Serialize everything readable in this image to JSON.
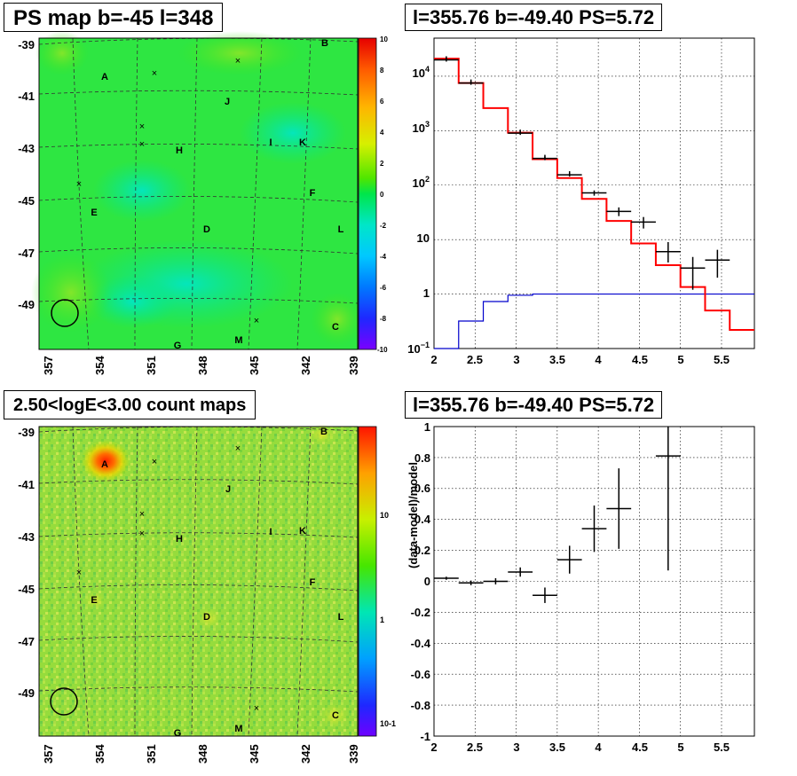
{
  "panels": {
    "top_left_title": "PS map b=-45 l=348",
    "top_right_title": "l=355.76 b=-49.40 PS=5.72",
    "bottom_left_title": "2.50<logE<3.00 count maps",
    "bottom_right_title": "l=355.76 b=-49.40 PS=5.72"
  },
  "maps": {
    "lat_ticks": [
      "-39",
      "-41",
      "-43",
      "-45",
      "-47",
      "-49"
    ],
    "lon_ticks": [
      "357",
      "354",
      "351",
      "348",
      "345",
      "342",
      "339"
    ],
    "source_labels": [
      "A",
      "B",
      "C",
      "D",
      "E",
      "F",
      "G",
      "H",
      "I",
      "J",
      "K",
      "L",
      "M"
    ],
    "ps_colorbar_ticks": [
      "10",
      "8",
      "6",
      "4",
      "2",
      "0",
      "-2",
      "-4",
      "-6",
      "-8",
      "-10"
    ],
    "count_colorbar_ticks": [
      "10",
      "1",
      "10-1"
    ]
  },
  "chart_data": [
    {
      "type": "line",
      "panel": "top-right",
      "title": "l=355.76 b=-49.40 PS=5.72",
      "xlabel": "",
      "ylabel": "",
      "xlim": [
        2,
        5.9
      ],
      "ylim": [
        0.1,
        50000
      ],
      "yscale": "log",
      "grid": true,
      "x_ticks": [
        "2",
        "2.5",
        "3",
        "3.5",
        "4",
        "4.5",
        "5",
        "5.5"
      ],
      "y_ticks": [
        "10^-1",
        "1",
        "10",
        "10^2",
        "10^3",
        "10^4"
      ],
      "data_points": [
        {
          "x": 2.15,
          "y": 20000,
          "xerr": 0.15
        },
        {
          "x": 2.45,
          "y": 7500,
          "xerr": 0.15
        },
        {
          "x": 3.05,
          "y": 900,
          "xerr": 0.15
        },
        {
          "x": 3.35,
          "y": 310,
          "xerr": 0.15
        },
        {
          "x": 3.65,
          "y": 155,
          "xerr": 0.15
        },
        {
          "x": 3.95,
          "y": 72,
          "xerr": 0.15,
          "yerr": 8
        },
        {
          "x": 4.25,
          "y": 33,
          "xerr": 0.15,
          "yerr": 6
        },
        {
          "x": 4.55,
          "y": 21,
          "xerr": 0.15,
          "yerr": 5
        },
        {
          "x": 4.85,
          "y": 6,
          "xerr": 0.15,
          "ylo": 3.8,
          "yhi": 9
        },
        {
          "x": 5.15,
          "y": 3,
          "xerr": 0.15,
          "ylo": 1.2,
          "yhi": 4.8
        },
        {
          "x": 5.45,
          "y": 4.2,
          "xerr": 0.15,
          "ylo": 2.0,
          "yhi": 6.5
        }
      ],
      "model_edges": [
        2.0,
        2.3,
        2.6,
        2.9,
        3.2,
        3.5,
        3.8,
        4.1,
        4.4,
        4.7,
        5.0,
        5.3,
        5.6,
        5.9
      ],
      "model_values": [
        21000,
        7500,
        2600,
        920,
        300,
        135,
        56,
        22,
        8.5,
        3.4,
        1.35,
        0.5,
        0.22
      ],
      "psf_edges": [
        2.0,
        2.3,
        2.6,
        2.9,
        3.2,
        3.5,
        3.8,
        4.1,
        4.4,
        4.7,
        5.0,
        5.3,
        5.6,
        5.9
      ],
      "psf_values": [
        0.06,
        0.32,
        0.73,
        0.95,
        1.0,
        1.0,
        1.0,
        1.0,
        1.0,
        1.0,
        1.0,
        1.0,
        1.0
      ],
      "colors": {
        "data": "#000000",
        "model": "#ff0000",
        "psf": "#0000cc"
      }
    },
    {
      "type": "scatter",
      "panel": "bottom-right",
      "title": "l=355.76 b=-49.40 PS=5.72",
      "xlabel": "",
      "ylabel": "(data-model)/model",
      "xlim": [
        2,
        5.9
      ],
      "ylim": [
        -1,
        1
      ],
      "grid": true,
      "x_ticks": [
        "2",
        "2.5",
        "3",
        "3.5",
        "4",
        "4.5",
        "5",
        "5.5"
      ],
      "y_ticks": [
        "-1",
        "-0.8",
        "-0.6",
        "-0.4",
        "-0.2",
        "0",
        "0.2",
        "0.4",
        "0.6",
        "0.8",
        "1"
      ],
      "points": [
        {
          "x": 2.15,
          "y": 0.02,
          "xerr": 0.15,
          "yerr": 0.01
        },
        {
          "x": 2.45,
          "y": -0.01,
          "xerr": 0.15,
          "yerr": 0.015
        },
        {
          "x": 2.75,
          "y": 0.0,
          "xerr": 0.15,
          "yerr": 0.02
        },
        {
          "x": 3.05,
          "y": 0.06,
          "xerr": 0.15,
          "yerr": 0.03
        },
        {
          "x": 3.35,
          "y": -0.09,
          "xerr": 0.15,
          "yerr": 0.05
        },
        {
          "x": 3.65,
          "y": 0.14,
          "xerr": 0.15,
          "yerr": 0.09
        },
        {
          "x": 3.95,
          "y": 0.34,
          "xerr": 0.15,
          "yerr": 0.15
        },
        {
          "x": 4.25,
          "y": 0.47,
          "xerr": 0.15,
          "yerr": 0.26
        },
        {
          "x": 4.85,
          "y": 0.81,
          "xerr": 0.15,
          "ylo": 0.07,
          "yhi": 1.0
        }
      ],
      "color": "#000000"
    }
  ]
}
